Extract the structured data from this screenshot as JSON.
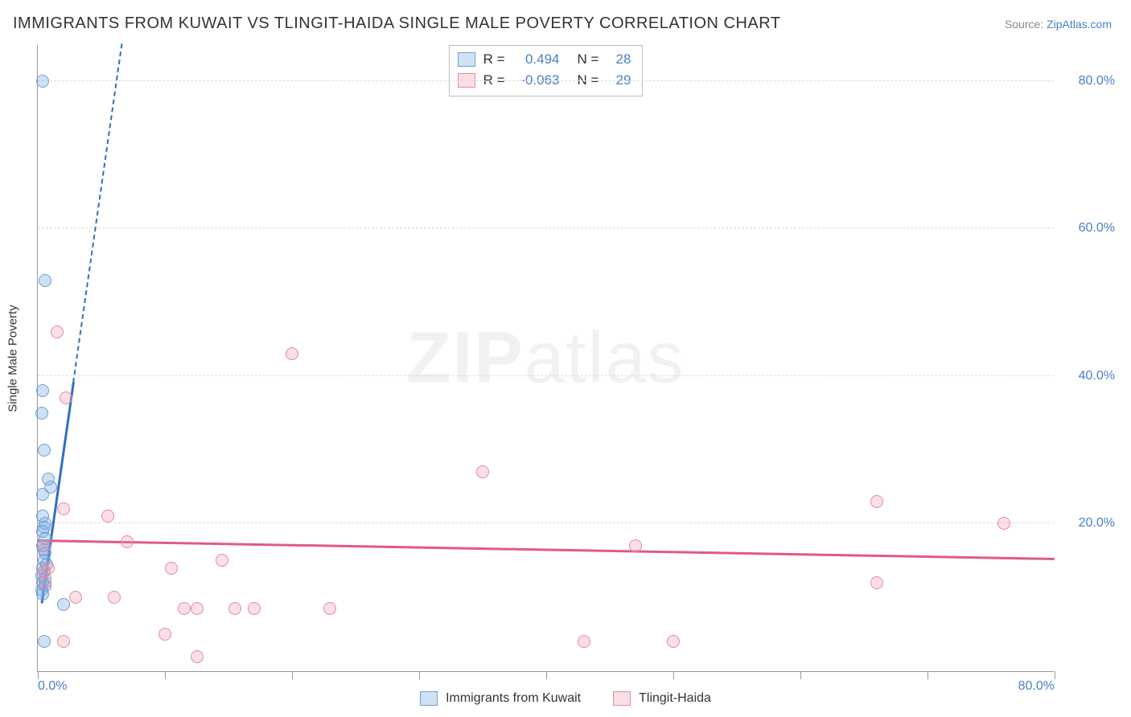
{
  "title": "IMMIGRANTS FROM KUWAIT VS TLINGIT-HAIDA SINGLE MALE POVERTY CORRELATION CHART",
  "source_label": "Source: ",
  "source_link": "ZipAtlas.com",
  "watermark_a": "ZIP",
  "watermark_b": "atlas",
  "ylabel": "Single Male Poverty",
  "chart": {
    "type": "scatter",
    "xlim": [
      0,
      80
    ],
    "ylim": [
      0,
      85
    ],
    "ytick_positions": [
      20,
      40,
      60,
      80
    ],
    "ytick_labels": [
      "20.0%",
      "40.0%",
      "60.0%",
      "80.0%"
    ],
    "xtick_positions": [
      0,
      10,
      20,
      30,
      40,
      50,
      60,
      70,
      80
    ],
    "xtick_labels_shown": {
      "0": "0.0%",
      "80": "80.0%"
    },
    "grid_color": "#dddddd",
    "axis_color": "#999999",
    "background_color": "#ffffff",
    "marker_radius": 8,
    "series": [
      {
        "key": "kuwait",
        "label": "Immigrants from Kuwait",
        "fill": "rgba(120,170,225,0.35)",
        "stroke": "#6b9fd6",
        "trend_color": "#2f6fc2",
        "trend_style": "solid-then-dashed",
        "R": "0.494",
        "N": "28",
        "trend": {
          "x1": 0.3,
          "y1": 9,
          "x2": 2.8,
          "y2": 39,
          "dash_to_y": 85
        },
        "points": [
          [
            0.4,
            80
          ],
          [
            0.6,
            53
          ],
          [
            0.4,
            38
          ],
          [
            0.3,
            35
          ],
          [
            0.5,
            30
          ],
          [
            0.8,
            26
          ],
          [
            1.0,
            25
          ],
          [
            0.4,
            24
          ],
          [
            0.6,
            20
          ],
          [
            0.5,
            19.5
          ],
          [
            0.4,
            19
          ],
          [
            0.6,
            18
          ],
          [
            0.4,
            17
          ],
          [
            0.6,
            16
          ],
          [
            0.5,
            15
          ],
          [
            0.4,
            14
          ],
          [
            0.5,
            13.5
          ],
          [
            0.3,
            13
          ],
          [
            0.6,
            12.5
          ],
          [
            0.4,
            12
          ],
          [
            0.6,
            11.5
          ],
          [
            0.3,
            11
          ],
          [
            2.0,
            9
          ],
          [
            0.5,
            4
          ],
          [
            0.4,
            10.5
          ],
          [
            0.7,
            14.5
          ],
          [
            0.5,
            16.5
          ],
          [
            0.4,
            21
          ]
        ]
      },
      {
        "key": "tlingit",
        "label": "Tlingit-Haida",
        "fill": "rgba(240,150,170,0.30)",
        "stroke": "#e48aa0",
        "trend_color": "#e05a85",
        "trend_style": "solid",
        "R": "-0.063",
        "N": "29",
        "trend": {
          "x1": 0,
          "y1": 17.5,
          "x2": 80,
          "y2": 15.0
        },
        "points": [
          [
            1.5,
            46
          ],
          [
            20,
            43
          ],
          [
            2.2,
            37
          ],
          [
            35,
            27
          ],
          [
            66,
            23
          ],
          [
            2.0,
            22
          ],
          [
            5.5,
            21
          ],
          [
            76,
            20
          ],
          [
            47,
            17
          ],
          [
            7,
            17.5
          ],
          [
            0.8,
            14
          ],
          [
            14.5,
            15
          ],
          [
            10.5,
            14
          ],
          [
            0.5,
            13.5
          ],
          [
            66,
            12
          ],
          [
            3,
            10
          ],
          [
            6,
            10
          ],
          [
            11.5,
            8.5
          ],
          [
            12.5,
            8.5
          ],
          [
            15.5,
            8.5
          ],
          [
            17,
            8.5
          ],
          [
            23,
            8.5
          ],
          [
            10,
            5
          ],
          [
            2,
            4
          ],
          [
            12.5,
            2
          ],
          [
            43,
            4
          ],
          [
            50,
            4
          ],
          [
            0.6,
            12
          ],
          [
            0.5,
            17
          ]
        ]
      }
    ]
  },
  "stats_box": {
    "r_label": "R =",
    "n_label": "N ="
  },
  "legend": {
    "items": [
      "kuwait",
      "tlingit"
    ]
  },
  "colors": {
    "link": "#4a7fc8",
    "text": "#333333",
    "muted": "#888888"
  }
}
